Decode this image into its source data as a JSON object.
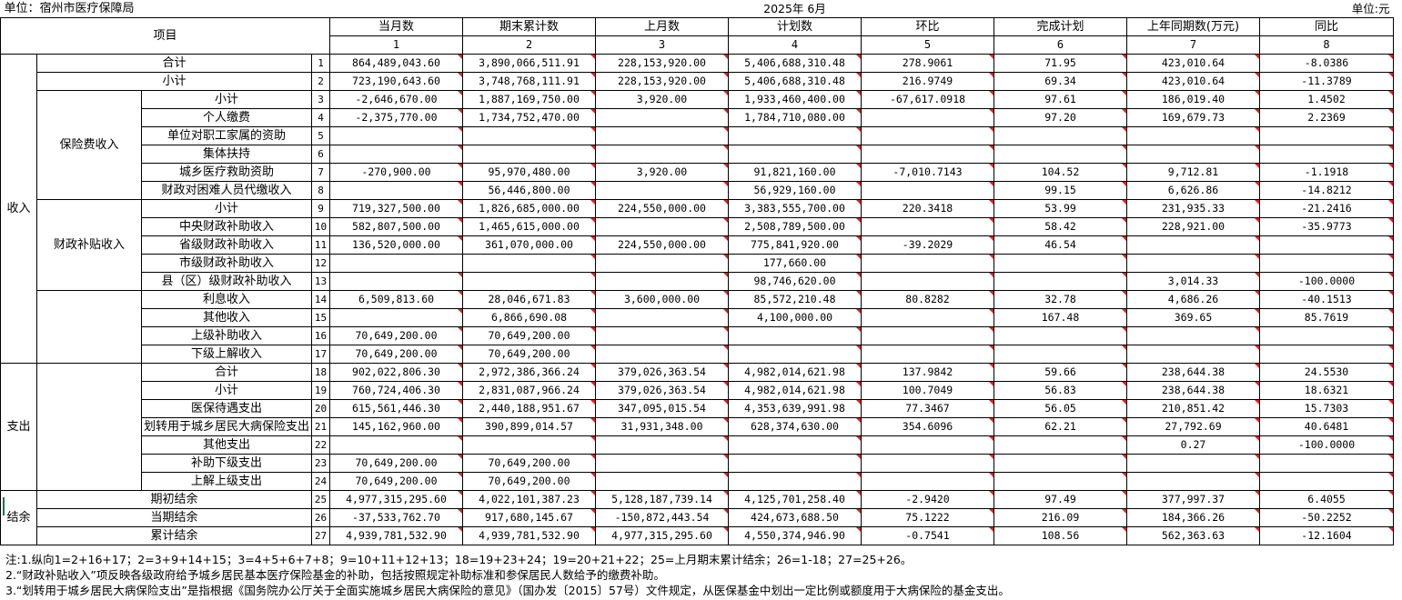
{
  "header": {
    "org": "单位：宿州市医疗保障局",
    "period": "2025年 6月",
    "unit": "单位:元"
  },
  "columns": {
    "item": "项目",
    "names": [
      "当月数",
      "期末累计数",
      "上月数",
      "计划数",
      "环比",
      "完成计划",
      "上年同期数(万元)",
      "同比"
    ],
    "nums": [
      "1",
      "2",
      "3",
      "4",
      "5",
      "6",
      "7",
      "8"
    ]
  },
  "groups": {
    "income": "收入",
    "premium": "保险费收入",
    "subsidy": "财政补贴收入",
    "expense": "支出",
    "balance": "结余"
  },
  "rows": [
    {
      "label": "合计",
      "n": "1",
      "v": [
        "864,489,043.60",
        "3,890,066,511.91",
        "228,153,920.00",
        "5,406,688,310.48",
        "278.9061",
        "71.95",
        "423,010.64",
        "-8.0386"
      ]
    },
    {
      "label": "小计",
      "n": "2",
      "v": [
        "723,190,643.60",
        "3,748,768,111.91",
        "228,153,920.00",
        "5,406,688,310.48",
        "216.9749",
        "69.34",
        "423,010.64",
        "-11.3789"
      ]
    },
    {
      "label": "小计",
      "n": "3",
      "v": [
        "-2,646,670.00",
        "1,887,169,750.00",
        "3,920.00",
        "1,933,460,400.00",
        "-67,617.0918",
        "97.61",
        "186,019.40",
        "1.4502"
      ]
    },
    {
      "label": "个人缴费",
      "n": "4",
      "v": [
        "-2,375,770.00",
        "1,734,752,470.00",
        "",
        "1,784,710,080.00",
        "",
        "97.20",
        "169,679.73",
        "2.2369"
      ]
    },
    {
      "label": "单位对职工家属的资助",
      "n": "5",
      "v": [
        "",
        "",
        "",
        "",
        "",
        "",
        "",
        ""
      ]
    },
    {
      "label": "集体扶持",
      "n": "6",
      "v": [
        "",
        "",
        "",
        "",
        "",
        "",
        "",
        ""
      ]
    },
    {
      "label": "城乡医疗救助资助",
      "n": "7",
      "v": [
        "-270,900.00",
        "95,970,480.00",
        "3,920.00",
        "91,821,160.00",
        "-7,010.7143",
        "104.52",
        "9,712.81",
        "-1.1918"
      ]
    },
    {
      "label": "财政对困难人员代缴收入",
      "n": "8",
      "v": [
        "",
        "56,446,800.00",
        "",
        "56,929,160.00",
        "",
        "99.15",
        "6,626.86",
        "-14.8212"
      ]
    },
    {
      "label": "小计",
      "n": "9",
      "v": [
        "719,327,500.00",
        "1,826,685,000.00",
        "224,550,000.00",
        "3,383,555,700.00",
        "220.3418",
        "53.99",
        "231,935.33",
        "-21.2416"
      ]
    },
    {
      "label": "中央财政补助收入",
      "n": "10",
      "v": [
        "582,807,500.00",
        "1,465,615,000.00",
        "",
        "2,508,789,500.00",
        "",
        "58.42",
        "228,921.00",
        "-35.9773"
      ]
    },
    {
      "label": "省级财政补助收入",
      "n": "11",
      "v": [
        "136,520,000.00",
        "361,070,000.00",
        "224,550,000.00",
        "775,841,920.00",
        "-39.2029",
        "46.54",
        "",
        ""
      ]
    },
    {
      "label": "市级财政补助收入",
      "n": "12",
      "v": [
        "",
        "",
        "",
        "177,660.00",
        "",
        "",
        "",
        ""
      ]
    },
    {
      "label": "县（区）级财政补助收入",
      "n": "13",
      "v": [
        "",
        "",
        "",
        "98,746,620.00",
        "",
        "",
        "3,014.33",
        "-100.0000"
      ]
    },
    {
      "label": "利息收入",
      "n": "14",
      "v": [
        "6,509,813.60",
        "28,046,671.83",
        "3,600,000.00",
        "85,572,210.48",
        "80.8282",
        "32.78",
        "4,686.26",
        "-40.1513"
      ]
    },
    {
      "label": "其他收入",
      "n": "15",
      "v": [
        "",
        "6,866,690.08",
        "",
        "4,100,000.00",
        "",
        "167.48",
        "369.65",
        "85.7619"
      ]
    },
    {
      "label": "上级补助收入",
      "n": "16",
      "v": [
        "70,649,200.00",
        "70,649,200.00",
        "",
        "",
        "",
        "",
        "",
        ""
      ]
    },
    {
      "label": "下级上解收入",
      "n": "17",
      "v": [
        "70,649,200.00",
        "70,649,200.00",
        "",
        "",
        "",
        "",
        "",
        ""
      ]
    },
    {
      "label": "合计",
      "n": "18",
      "v": [
        "902,022,806.30",
        "2,972,386,366.24",
        "379,026,363.54",
        "4,982,014,621.98",
        "137.9842",
        "59.66",
        "238,644.38",
        "24.5530"
      ]
    },
    {
      "label": "小计",
      "n": "19",
      "v": [
        "760,724,406.30",
        "2,831,087,966.24",
        "379,026,363.54",
        "4,982,014,621.98",
        "100.7049",
        "56.83",
        "238,644.38",
        "18.6321"
      ]
    },
    {
      "label": "医保待遇支出",
      "n": "20",
      "v": [
        "615,561,446.30",
        "2,440,188,951.67",
        "347,095,015.54",
        "4,353,639,991.98",
        "77.3467",
        "56.05",
        "210,851.42",
        "15.7303"
      ]
    },
    {
      "label": "划转用于城乡居民大病保险支出",
      "n": "21",
      "v": [
        "145,162,960.00",
        "390,899,014.57",
        "31,931,348.00",
        "628,374,630.00",
        "354.6096",
        "62.21",
        "27,792.69",
        "40.6481"
      ]
    },
    {
      "label": "其他支出",
      "n": "22",
      "v": [
        "",
        "",
        "",
        "",
        "",
        "",
        "0.27",
        "-100.0000"
      ]
    },
    {
      "label": "补助下级支出",
      "n": "23",
      "v": [
        "70,649,200.00",
        "70,649,200.00",
        "",
        "",
        "",
        "",
        "",
        ""
      ]
    },
    {
      "label": "上解上级支出",
      "n": "24",
      "v": [
        "70,649,200.00",
        "70,649,200.00",
        "",
        "",
        "",
        "",
        "",
        ""
      ]
    },
    {
      "label": "期初结余",
      "n": "25",
      "v": [
        "4,977,315,295.60",
        "4,022,101,387.23",
        "5,128,187,739.14",
        "4,125,701,258.40",
        "-2.9420",
        "97.49",
        "377,997.37",
        "6.4055"
      ]
    },
    {
      "label": "当期结余",
      "n": "26",
      "v": [
        "-37,533,762.70",
        "917,680,145.67",
        "-150,872,443.54",
        "424,673,688.50",
        "75.1222",
        "216.09",
        "184,366.26",
        "-50.2252"
      ]
    },
    {
      "label": "累计结余",
      "n": "27",
      "v": [
        "4,939,781,532.90",
        "4,939,781,532.90",
        "4,977,315,295.60",
        "4,550,374,946.90",
        "-0.7541",
        "108.56",
        "562,363.63",
        "-12.1604"
      ]
    }
  ],
  "notes": [
    "注:1.纵向1=2+16+17；2=3+9+14+15；3=4+5+6+7+8；9=10+11+12+13；18=19+23+24；19=20+21+22；25=上月期末累计结余；26=1-18；27=25+26。",
    "2.“财政补贴收入”项反映各级政府给予城乡居民基本医疗保险基金的补助，包括按照规定补助标准和参保居民人数给予的缴费补助。",
    "3.“划转用于城乡居民大病保险支出”是指根据《国务院办公厅关于全面实施城乡居民大病保险的意见》（国办发〔2015〕57号）文件规定，从医保基金中划出一定比例或额度用于大病保险的基金支出。"
  ],
  "colors": {
    "grid": "#000000",
    "marker": "#e02020"
  }
}
